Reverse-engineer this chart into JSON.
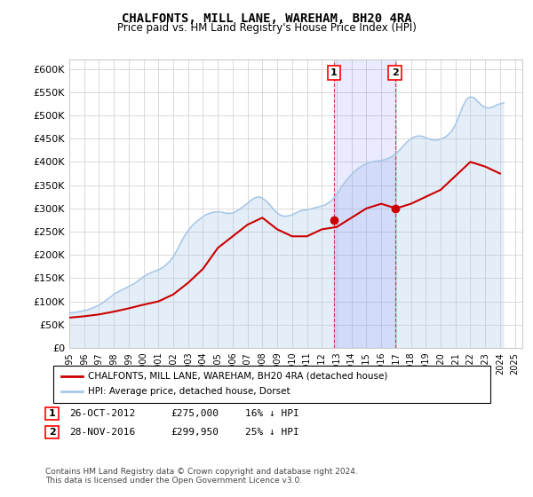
{
  "title": "CHALFONTS, MILL LANE, WAREHAM, BH20 4RA",
  "subtitle": "Price paid vs. HM Land Registry's House Price Index (HPI)",
  "ylabel_ticks": [
    "£0",
    "£50K",
    "£100K",
    "£150K",
    "£200K",
    "£250K",
    "£300K",
    "£350K",
    "£400K",
    "£450K",
    "£500K",
    "£550K",
    "£600K"
  ],
  "ytick_values": [
    0,
    50000,
    100000,
    150000,
    200000,
    250000,
    300000,
    350000,
    400000,
    450000,
    500000,
    550000,
    600000
  ],
  "ylim": [
    0,
    620000
  ],
  "xlim_start": 1995.0,
  "xlim_end": 2025.5,
  "hpi_color": "#a8c8e8",
  "price_color": "#cc0000",
  "marker1_date": 2012.82,
  "marker1_price": 275000,
  "marker1_label": "1",
  "marker1_text": "26-OCT-2012",
  "marker1_amount": "£275,000",
  "marker1_pct": "16% ↓ HPI",
  "marker2_date": 2016.92,
  "marker2_price": 299950,
  "marker2_label": "2",
  "marker2_text": "28-NOV-2016",
  "marker2_amount": "£299,950",
  "marker2_pct": "25% ↓ HPI",
  "legend_line1": "CHALFONTS, MILL LANE, WAREHAM, BH20 4RA (detached house)",
  "legend_line2": "HPI: Average price, detached house, Dorset",
  "footnote": "Contains HM Land Registry data © Crown copyright and database right 2024.\nThis data is licensed under the Open Government Licence v3.0.",
  "hpi_x": [
    1995,
    1995.25,
    1995.5,
    1995.75,
    1996,
    1996.25,
    1996.5,
    1996.75,
    1997,
    1997.25,
    1997.5,
    1997.75,
    1998,
    1998.25,
    1998.5,
    1998.75,
    1999,
    1999.25,
    1999.5,
    1999.75,
    2000,
    2000.25,
    2000.5,
    2000.75,
    2001,
    2001.25,
    2001.5,
    2001.75,
    2002,
    2002.25,
    2002.5,
    2002.75,
    2003,
    2003.25,
    2003.5,
    2003.75,
    2004,
    2004.25,
    2004.5,
    2004.75,
    2005,
    2005.25,
    2005.5,
    2005.75,
    2006,
    2006.25,
    2006.5,
    2006.75,
    2007,
    2007.25,
    2007.5,
    2007.75,
    2008,
    2008.25,
    2008.5,
    2008.75,
    2009,
    2009.25,
    2009.5,
    2009.75,
    2010,
    2010.25,
    2010.5,
    2010.75,
    2011,
    2011.25,
    2011.5,
    2011.75,
    2012,
    2012.25,
    2012.5,
    2012.75,
    2013,
    2013.25,
    2013.5,
    2013.75,
    2014,
    2014.25,
    2014.5,
    2014.75,
    2015,
    2015.25,
    2015.5,
    2015.75,
    2016,
    2016.25,
    2016.5,
    2016.75,
    2017,
    2017.25,
    2017.5,
    2017.75,
    2018,
    2018.25,
    2018.5,
    2018.75,
    2019,
    2019.25,
    2019.5,
    2019.75,
    2020,
    2020.25,
    2020.5,
    2020.75,
    2021,
    2021.25,
    2021.5,
    2021.75,
    2022,
    2022.25,
    2022.5,
    2022.75,
    2023,
    2023.25,
    2023.5,
    2023.75,
    2024,
    2024.25
  ],
  "hpi_y": [
    75000,
    76000,
    77000,
    78500,
    80000,
    82000,
    85000,
    88000,
    92000,
    97000,
    103000,
    109000,
    115000,
    120000,
    124000,
    128000,
    132000,
    136000,
    141000,
    147000,
    153000,
    158000,
    162000,
    165000,
    168000,
    172000,
    178000,
    186000,
    196000,
    210000,
    226000,
    240000,
    252000,
    262000,
    270000,
    276000,
    282000,
    287000,
    290000,
    292000,
    293000,
    292000,
    290000,
    289000,
    290000,
    294000,
    299000,
    305000,
    311000,
    318000,
    323000,
    325000,
    322000,
    316000,
    308000,
    298000,
    290000,
    285000,
    283000,
    284000,
    286000,
    290000,
    294000,
    296000,
    297000,
    299000,
    301000,
    303000,
    305000,
    308000,
    313000,
    320000,
    330000,
    342000,
    354000,
    364000,
    373000,
    381000,
    387000,
    392000,
    396000,
    399000,
    401000,
    402000,
    403000,
    405000,
    408000,
    412000,
    418000,
    426000,
    435000,
    443000,
    450000,
    454000,
    456000,
    455000,
    452000,
    449000,
    447000,
    447000,
    449000,
    452000,
    458000,
    467000,
    480000,
    500000,
    520000,
    535000,
    540000,
    538000,
    530000,
    522000,
    517000,
    516000,
    518000,
    522000,
    525000,
    527000
  ],
  "price_x": [
    1995,
    1996,
    1997,
    1998,
    1999,
    2000,
    2001,
    2002,
    2003,
    2004,
    2005,
    2006,
    2007,
    2008,
    2009,
    2010,
    2011,
    2012,
    2013,
    2014,
    2015,
    2016,
    2017,
    2018,
    2019,
    2020,
    2021,
    2022,
    2023,
    2024
  ],
  "price_y": [
    65000,
    68000,
    72000,
    78000,
    85000,
    93000,
    100000,
    115000,
    140000,
    170000,
    215000,
    240000,
    265000,
    280000,
    255000,
    240000,
    240000,
    255000,
    260000,
    280000,
    300000,
    310000,
    300000,
    310000,
    325000,
    340000,
    370000,
    400000,
    390000,
    375000
  ]
}
